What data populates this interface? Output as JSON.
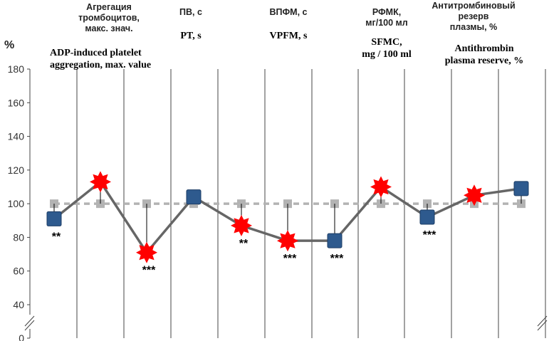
{
  "chart_data": {
    "type": "line",
    "yunit": "%",
    "ylim": [
      0,
      180
    ],
    "yticks": [
      0,
      40,
      60,
      80,
      100,
      120,
      140,
      160,
      180
    ],
    "axis_break": true,
    "grid": "vertical",
    "column_headers": [
      {
        "ru": [
          "Агрегация",
          "тромбоцитов,",
          "макс. знач."
        ],
        "en": [
          "ADP-induced platelet",
          "aggregation, max. value"
        ]
      },
      {
        "ru": [
          "ПВ, с"
        ],
        "en": [
          "PT, s"
        ]
      },
      {
        "ru": [
          "ВПФМ, с"
        ],
        "en": [
          "VPFM, s"
        ]
      },
      {
        "ru": [
          "РФМК,",
          "мг/100 мл"
        ],
        "en": [
          "SFMC,",
          "mg / 100 ml"
        ]
      },
      {
        "ru": [
          "Антитромбиновый",
          "резерв",
          "плазмы, %"
        ],
        "en": [
          "Antithrombin",
          "plasma reserve, %"
        ]
      }
    ],
    "reference": {
      "values": [
        100,
        100,
        100,
        100,
        100,
        100,
        100,
        100,
        100,
        100,
        100
      ],
      "color": "#b3b3b3",
      "style": "dashed"
    },
    "series": {
      "values": [
        91,
        113,
        71,
        104,
        87,
        78,
        78,
        110,
        92,
        105,
        109
      ],
      "markers": [
        "square",
        "star",
        "star",
        "square",
        "star",
        "star",
        "square",
        "star",
        "square",
        "star",
        "square"
      ],
      "significance": [
        "**",
        "",
        "***",
        "",
        "**",
        "***",
        "***",
        "",
        "***",
        "",
        ""
      ],
      "line_color": "#666666",
      "square_color": "#2e5a8e",
      "star_color": "#ff0000"
    }
  }
}
